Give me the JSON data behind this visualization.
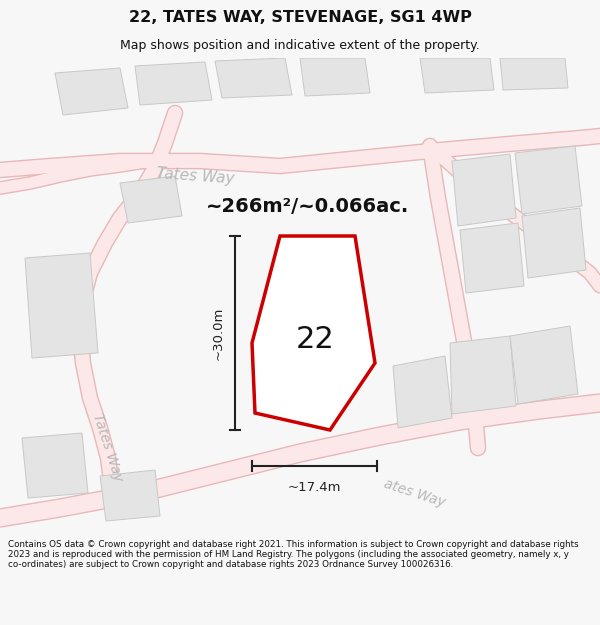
{
  "title": "22, TATES WAY, STEVENAGE, SG1 4WP",
  "subtitle": "Map shows position and indicative extent of the property.",
  "area_text": "~266m²/~0.066ac.",
  "label_22": "22",
  "dim_width": "~17.4m",
  "dim_height": "~30.0m",
  "footer": "Contains OS data © Crown copyright and database right 2021. This information is subject to Crown copyright and database rights 2023 and is reproduced with the permission of HM Land Registry. The polygons (including the associated geometry, namely x, y co-ordinates) are subject to Crown copyright and database rights 2023 Ordnance Survey 100026316.",
  "bg_color": "#f7f7f7",
  "map_bg": "#ffffff",
  "road_fill": "#fce8e8",
  "road_edge": "#e8b8b8",
  "building_fill": "#e4e4e4",
  "building_edge": "#c8c8c8",
  "plot_fill": "#ffffff",
  "plot_stroke": "#cc0000",
  "dim_color": "#222222",
  "street_label_color": "#b8b8b8",
  "title_color": "#111111",
  "footer_color": "#111111",
  "area_color": "#111111",
  "title_fontsize": 11.5,
  "subtitle_fontsize": 9.0,
  "area_fontsize": 14,
  "label22_fontsize": 22,
  "dim_fontsize": 9.5,
  "street_fontsize": 11,
  "footer_fontsize": 6.3
}
